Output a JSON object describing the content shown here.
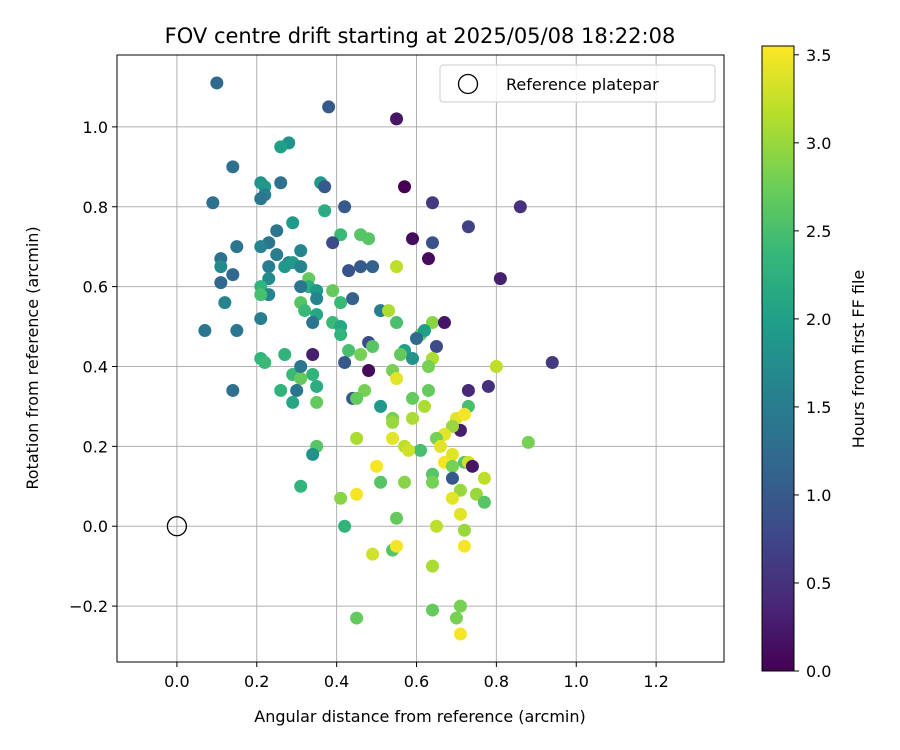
{
  "chart_data": {
    "type": "scatter",
    "title": "FOV centre drift starting at 2025/05/08 18:22:08",
    "xlabel": "Angular distance from reference (arcmin)",
    "ylabel": "Rotation from reference (arcmin)",
    "xlim": [
      -0.15,
      1.37
    ],
    "ylim": [
      -0.34,
      1.18
    ],
    "xticks": [
      0.0,
      0.2,
      0.4,
      0.6,
      0.8,
      1.0,
      1.2
    ],
    "xtick_labels": [
      "0.0",
      "0.2",
      "0.4",
      "0.6",
      "0.8",
      "1.0",
      "1.2"
    ],
    "yticks": [
      -0.2,
      0.0,
      0.2,
      0.4,
      0.6,
      0.8,
      1.0
    ],
    "ytick_labels": [
      "−0.2",
      "0.0",
      "0.2",
      "0.4",
      "0.6",
      "0.8",
      "1.0"
    ],
    "grid": true,
    "legend": {
      "position": "top-right",
      "entries": [
        "Reference platepar"
      ]
    },
    "reference_point": {
      "x": 0.0,
      "y": 0.0
    },
    "colorbar": {
      "label": "Hours from first FF file",
      "range": [
        0.0,
        3.55
      ],
      "ticks": [
        0.0,
        0.5,
        1.0,
        1.5,
        2.0,
        2.5,
        3.0,
        3.5
      ],
      "tick_labels": [
        "0.0",
        "0.5",
        "1.0",
        "1.5",
        "2.0",
        "2.5",
        "3.0",
        "3.5"
      ],
      "colormap": [
        "#440154",
        "#482878",
        "#3e4a89",
        "#31688e",
        "#26828e",
        "#1f9e89",
        "#35b779",
        "#6ece58",
        "#b5de2b",
        "#fde725"
      ]
    },
    "points": [
      [
        0.1,
        1.11,
        1.2
      ],
      [
        0.38,
        1.05,
        1.0
      ],
      [
        0.55,
        1.02,
        0.2
      ],
      [
        0.28,
        0.96,
        1.8
      ],
      [
        0.26,
        0.95,
        2.0
      ],
      [
        0.14,
        0.9,
        1.3
      ],
      [
        0.36,
        0.86,
        1.9
      ],
      [
        0.26,
        0.86,
        1.3
      ],
      [
        0.21,
        0.86,
        1.8
      ],
      [
        0.22,
        0.85,
        1.9
      ],
      [
        0.37,
        0.85,
        1.0
      ],
      [
        0.57,
        0.85,
        0.0
      ],
      [
        0.22,
        0.83,
        1.5
      ],
      [
        0.21,
        0.82,
        1.4
      ],
      [
        0.09,
        0.81,
        1.3
      ],
      [
        0.42,
        0.8,
        1.0
      ],
      [
        0.64,
        0.81,
        0.6
      ],
      [
        0.86,
        0.8,
        0.5
      ],
      [
        0.37,
        0.79,
        2.2
      ],
      [
        0.29,
        0.76,
        1.9
      ],
      [
        0.73,
        0.75,
        0.7
      ],
      [
        0.25,
        0.74,
        1.4
      ],
      [
        0.41,
        0.73,
        2.4
      ],
      [
        0.46,
        0.73,
        2.6
      ],
      [
        0.48,
        0.72,
        2.6
      ],
      [
        0.59,
        0.72,
        0.1
      ],
      [
        0.64,
        0.71,
        0.9
      ],
      [
        0.23,
        0.71,
        1.4
      ],
      [
        0.39,
        0.71,
        0.8
      ],
      [
        0.15,
        0.7,
        1.4
      ],
      [
        0.21,
        0.7,
        1.6
      ],
      [
        0.31,
        0.69,
        1.6
      ],
      [
        0.25,
        0.68,
        1.5
      ],
      [
        0.11,
        0.67,
        1.3
      ],
      [
        0.63,
        0.67,
        0.1
      ],
      [
        0.28,
        0.66,
        1.6
      ],
      [
        0.29,
        0.66,
        1.9
      ],
      [
        0.27,
        0.65,
        1.9
      ],
      [
        0.23,
        0.65,
        1.5
      ],
      [
        0.31,
        0.65,
        1.6
      ],
      [
        0.11,
        0.65,
        1.7
      ],
      [
        0.49,
        0.65,
        1.1
      ],
      [
        0.46,
        0.65,
        1.0
      ],
      [
        0.55,
        0.65,
        3.2
      ],
      [
        0.43,
        0.64,
        0.9
      ],
      [
        0.14,
        0.63,
        1.2
      ],
      [
        0.23,
        0.62,
        1.7
      ],
      [
        0.33,
        0.62,
        2.7
      ],
      [
        0.11,
        0.61,
        1.2
      ],
      [
        0.81,
        0.62,
        0.3
      ],
      [
        0.33,
        0.6,
        2.2
      ],
      [
        0.31,
        0.6,
        1.4
      ],
      [
        0.21,
        0.6,
        2.3
      ],
      [
        0.35,
        0.59,
        1.9
      ],
      [
        0.39,
        0.59,
        2.7
      ],
      [
        0.23,
        0.58,
        1.6
      ],
      [
        0.21,
        0.58,
        2.5
      ],
      [
        0.35,
        0.57,
        1.6
      ],
      [
        0.44,
        0.57,
        1.1
      ],
      [
        0.12,
        0.56,
        1.6
      ],
      [
        0.31,
        0.56,
        2.6
      ],
      [
        0.41,
        0.56,
        2.4
      ],
      [
        0.51,
        0.54,
        1.5
      ],
      [
        0.32,
        0.54,
        2.4
      ],
      [
        0.35,
        0.53,
        2.1
      ],
      [
        0.53,
        0.54,
        3.1
      ],
      [
        0.21,
        0.52,
        1.5
      ],
      [
        0.34,
        0.51,
        1.4
      ],
      [
        0.39,
        0.51,
        2.4
      ],
      [
        0.41,
        0.5,
        2.1
      ],
      [
        0.55,
        0.51,
        2.5
      ],
      [
        0.64,
        0.51,
        2.9
      ],
      [
        0.67,
        0.51,
        0.2
      ],
      [
        0.15,
        0.49,
        1.4
      ],
      [
        0.07,
        0.49,
        1.4
      ],
      [
        0.41,
        0.48,
        2.3
      ],
      [
        0.61,
        0.48,
        2.7
      ],
      [
        0.62,
        0.49,
        2.0
      ],
      [
        0.6,
        0.47,
        1.2
      ],
      [
        0.48,
        0.46,
        0.8
      ],
      [
        0.49,
        0.45,
        2.6
      ],
      [
        0.65,
        0.45,
        0.8
      ],
      [
        0.57,
        0.44,
        2.0
      ],
      [
        0.43,
        0.44,
        2.5
      ],
      [
        0.56,
        0.43,
        2.7
      ],
      [
        0.46,
        0.43,
        2.8
      ],
      [
        0.34,
        0.43,
        0.3
      ],
      [
        0.27,
        0.43,
        2.3
      ],
      [
        0.59,
        0.42,
        1.8
      ],
      [
        0.64,
        0.42,
        3.1
      ],
      [
        0.21,
        0.42,
        2.3
      ],
      [
        0.22,
        0.41,
        2.4
      ],
      [
        0.42,
        0.41,
        1.0
      ],
      [
        0.63,
        0.4,
        2.8
      ],
      [
        0.94,
        0.41,
        0.6
      ],
      [
        0.48,
        0.39,
        0.1
      ],
      [
        0.54,
        0.39,
        2.8
      ],
      [
        0.34,
        0.38,
        2.3
      ],
      [
        0.29,
        0.38,
        2.4
      ],
      [
        0.8,
        0.4,
        3.2
      ],
      [
        0.31,
        0.37,
        2.7
      ],
      [
        0.55,
        0.37,
        3.4
      ],
      [
        0.31,
        0.4,
        1.4
      ],
      [
        0.35,
        0.35,
        2.2
      ],
      [
        0.47,
        0.34,
        2.8
      ],
      [
        0.63,
        0.34,
        2.7
      ],
      [
        0.78,
        0.35,
        0.5
      ],
      [
        0.14,
        0.34,
        1.3
      ],
      [
        0.26,
        0.34,
        2.3
      ],
      [
        0.3,
        0.34,
        1.4
      ],
      [
        0.73,
        0.34,
        0.4
      ],
      [
        0.44,
        0.32,
        1.0
      ],
      [
        0.45,
        0.32,
        2.7
      ],
      [
        0.35,
        0.31,
        2.7
      ],
      [
        0.29,
        0.31,
        2.1
      ],
      [
        0.51,
        0.3,
        1.9
      ],
      [
        0.59,
        0.32,
        2.7
      ],
      [
        0.73,
        0.3,
        2.5
      ],
      [
        0.62,
        0.3,
        3.1
      ],
      [
        0.7,
        0.27,
        3.4
      ],
      [
        0.54,
        0.27,
        2.8
      ],
      [
        0.59,
        0.27,
        3.1
      ],
      [
        0.54,
        0.26,
        3.0
      ],
      [
        0.72,
        0.28,
        3.5
      ],
      [
        0.71,
        0.24,
        0.3
      ],
      [
        0.69,
        0.25,
        3.0
      ],
      [
        0.67,
        0.23,
        3.4
      ],
      [
        0.65,
        0.22,
        2.8
      ],
      [
        0.54,
        0.22,
        3.4
      ],
      [
        0.45,
        0.22,
        3.1
      ],
      [
        0.88,
        0.21,
        2.8
      ],
      [
        0.35,
        0.2,
        2.6
      ],
      [
        0.57,
        0.2,
        3.2
      ],
      [
        0.61,
        0.19,
        2.5
      ],
      [
        0.66,
        0.2,
        3.4
      ],
      [
        0.58,
        0.19,
        3.3
      ],
      [
        0.34,
        0.18,
        1.8
      ],
      [
        0.67,
        0.16,
        3.5
      ],
      [
        0.72,
        0.16,
        2.6
      ],
      [
        0.73,
        0.16,
        3.3
      ],
      [
        0.69,
        0.18,
        3.4
      ],
      [
        0.74,
        0.15,
        0.2
      ],
      [
        0.69,
        0.15,
        2.8
      ],
      [
        0.5,
        0.15,
        3.5
      ],
      [
        0.64,
        0.13,
        2.6
      ],
      [
        0.69,
        0.12,
        1.0
      ],
      [
        0.77,
        0.12,
        3.2
      ],
      [
        0.51,
        0.11,
        2.6
      ],
      [
        0.57,
        0.11,
        2.9
      ],
      [
        0.64,
        0.11,
        2.8
      ],
      [
        0.31,
        0.1,
        2.3
      ],
      [
        0.71,
        0.09,
        3.0
      ],
      [
        0.75,
        0.08,
        3.0
      ],
      [
        0.41,
        0.07,
        2.9
      ],
      [
        0.45,
        0.08,
        3.5
      ],
      [
        0.69,
        0.07,
        3.4
      ],
      [
        0.77,
        0.06,
        2.6
      ],
      [
        0.71,
        0.03,
        3.4
      ],
      [
        0.55,
        0.02,
        2.7
      ],
      [
        0.42,
        0.0,
        2.3
      ],
      [
        0.65,
        0.0,
        3.2
      ],
      [
        0.72,
        -0.01,
        3.0
      ],
      [
        0.54,
        -0.06,
        2.6
      ],
      [
        0.49,
        -0.07,
        3.3
      ],
      [
        0.55,
        -0.05,
        3.5
      ],
      [
        0.72,
        -0.05,
        3.5
      ],
      [
        0.64,
        -0.1,
        3.1
      ],
      [
        0.71,
        -0.2,
        2.8
      ],
      [
        0.64,
        -0.21,
        2.7
      ],
      [
        0.7,
        -0.23,
        2.8
      ],
      [
        0.45,
        -0.23,
        2.7
      ],
      [
        0.71,
        -0.27,
        3.5
      ]
    ]
  }
}
